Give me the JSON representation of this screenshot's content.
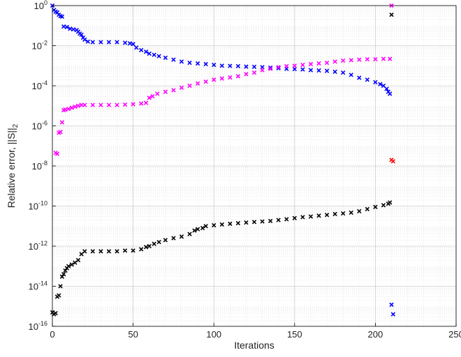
{
  "chart_data": {
    "type": "scatter",
    "title": "",
    "xlabel": "Iterations",
    "ylabel": "Relative error, ||S||",
    "ylabel_sub": "2",
    "xlim": [
      0,
      250
    ],
    "ylim": [
      1e-16,
      1
    ],
    "yscale": "log",
    "grid": true,
    "minor_grid": true,
    "legend": "none",
    "marker": "x",
    "x_ticks": [
      "0",
      "50",
      "100",
      "150",
      "200",
      "250"
    ],
    "y_ticks": [
      {
        "base": "10",
        "exp": "0"
      },
      {
        "base": "10",
        "exp": "-2"
      },
      {
        "base": "10",
        "exp": "-4"
      },
      {
        "base": "10",
        "exp": "-6"
      },
      {
        "base": "10",
        "exp": "-8"
      },
      {
        "base": "10",
        "exp": "-10"
      },
      {
        "base": "10",
        "exp": "-12"
      },
      {
        "base": "10",
        "exp": "-14"
      },
      {
        "base": "10",
        "exp": "-16"
      }
    ],
    "series": [
      {
        "color": "#0000ff",
        "points": [
          [
            0,
            1
          ],
          [
            1,
            0.6
          ],
          [
            2,
            0.5
          ],
          [
            3,
            0.45
          ],
          [
            4,
            0.35
          ],
          [
            5,
            0.3
          ],
          [
            6,
            0.28
          ],
          [
            7,
            0.09
          ],
          [
            9,
            0.085
          ],
          [
            11,
            0.07
          ],
          [
            13,
            0.065
          ],
          [
            15,
            0.06
          ],
          [
            16,
            0.05
          ],
          [
            17,
            0.04
          ],
          [
            18,
            0.035
          ],
          [
            19,
            0.025
          ],
          [
            20,
            0.02
          ],
          [
            22,
            0.016
          ],
          [
            25,
            0.015
          ],
          [
            30,
            0.015
          ],
          [
            35,
            0.015
          ],
          [
            40,
            0.015
          ],
          [
            45,
            0.014
          ],
          [
            48,
            0.013
          ],
          [
            50,
            0.012
          ],
          [
            52,
            0.008
          ],
          [
            55,
            0.006
          ],
          [
            58,
            0.005
          ],
          [
            60,
            0.004
          ],
          [
            63,
            0.0035
          ],
          [
            66,
            0.003
          ],
          [
            70,
            0.0025
          ],
          [
            75,
            0.002
          ],
          [
            80,
            0.0016
          ],
          [
            85,
            0.0014
          ],
          [
            90,
            0.0013
          ],
          [
            95,
            0.0012
          ],
          [
            100,
            0.0011
          ],
          [
            105,
            0.001
          ],
          [
            110,
            0.00098
          ],
          [
            115,
            0.00095
          ],
          [
            120,
            0.0009
          ],
          [
            125,
            0.00088
          ],
          [
            130,
            0.00085
          ],
          [
            135,
            0.0008
          ],
          [
            140,
            0.00075
          ],
          [
            145,
            0.0007
          ],
          [
            150,
            0.00068
          ],
          [
            155,
            0.00065
          ],
          [
            160,
            0.0006
          ],
          [
            165,
            0.00058
          ],
          [
            170,
            0.00055
          ],
          [
            175,
            0.0005
          ],
          [
            180,
            0.00045
          ],
          [
            185,
            0.00035
          ],
          [
            190,
            0.00025
          ],
          [
            195,
            0.0002
          ],
          [
            200,
            0.00015
          ],
          [
            203,
            0.00012
          ],
          [
            205,
            0.0001
          ],
          [
            207,
            7e-05
          ],
          [
            208,
            5e-05
          ],
          [
            209,
            4e-05
          ]
        ]
      },
      {
        "color": "#ff00ff",
        "points": [
          [
            2,
            4.5e-08
          ],
          [
            3,
            4e-08
          ],
          [
            4,
            4.5e-07
          ],
          [
            5,
            5e-07
          ],
          [
            6,
            1.5e-06
          ],
          [
            7,
            6e-06
          ],
          [
            8,
            6.5e-06
          ],
          [
            10,
            7e-06
          ],
          [
            12,
            8e-06
          ],
          [
            14,
            9e-06
          ],
          [
            16,
            1e-05
          ],
          [
            18,
            1.1e-05
          ],
          [
            20,
            1.1e-05
          ],
          [
            25,
            1.1e-05
          ],
          [
            30,
            1.1e-05
          ],
          [
            35,
            1.1e-05
          ],
          [
            40,
            1.1e-05
          ],
          [
            45,
            1.15e-05
          ],
          [
            50,
            1.2e-05
          ],
          [
            55,
            1.3e-05
          ],
          [
            58,
            1.4e-05
          ],
          [
            60,
            2.5e-05
          ],
          [
            62,
            3e-05
          ],
          [
            65,
            4e-05
          ],
          [
            70,
            5e-05
          ],
          [
            75,
            6e-05
          ],
          [
            80,
            8e-05
          ],
          [
            85,
            0.0001
          ],
          [
            90,
            0.00013
          ],
          [
            95,
            0.00016
          ],
          [
            100,
            0.0002
          ],
          [
            105,
            0.00023
          ],
          [
            110,
            0.00026
          ],
          [
            115,
            0.0003
          ],
          [
            120,
            0.00038
          ],
          [
            125,
            0.00045
          ],
          [
            130,
            0.0006
          ],
          [
            135,
            0.0007
          ],
          [
            140,
            0.00085
          ],
          [
            145,
            0.00095
          ],
          [
            150,
            0.001
          ],
          [
            155,
            0.0011
          ],
          [
            160,
            0.0012
          ],
          [
            165,
            0.0013
          ],
          [
            170,
            0.0014
          ],
          [
            175,
            0.0016
          ],
          [
            180,
            0.0018
          ],
          [
            185,
            0.0019
          ],
          [
            190,
            0.002
          ],
          [
            195,
            0.0021
          ],
          [
            200,
            0.0021
          ],
          [
            205,
            0.0022
          ],
          [
            209,
            0.0022
          ],
          [
            210,
            1
          ]
        ]
      },
      {
        "color": "#000000",
        "points": [
          [
            0,
            5e-16
          ],
          [
            1,
            4e-16
          ],
          [
            2,
            4.5e-16
          ],
          [
            3,
            3e-15
          ],
          [
            4,
            3.5e-15
          ],
          [
            5,
            1e-14
          ],
          [
            6,
            3e-14
          ],
          [
            7,
            4e-14
          ],
          [
            8,
            6e-14
          ],
          [
            9,
            8e-14
          ],
          [
            10,
            1e-13
          ],
          [
            12,
            1.2e-13
          ],
          [
            14,
            1.5e-13
          ],
          [
            16,
            2e-13
          ],
          [
            18,
            4e-13
          ],
          [
            20,
            5.5e-13
          ],
          [
            25,
            5.5e-13
          ],
          [
            30,
            5.5e-13
          ],
          [
            35,
            5.5e-13
          ],
          [
            40,
            5.5e-13
          ],
          [
            45,
            6e-13
          ],
          [
            50,
            6e-13
          ],
          [
            55,
            7e-13
          ],
          [
            58,
            9e-13
          ],
          [
            60,
            1e-12
          ],
          [
            63,
            1.3e-12
          ],
          [
            66,
            1.6e-12
          ],
          [
            70,
            2e-12
          ],
          [
            75,
            2.5e-12
          ],
          [
            80,
            3e-12
          ],
          [
            85,
            4e-12
          ],
          [
            88,
            6e-12
          ],
          [
            90,
            7e-12
          ],
          [
            93,
            8e-12
          ],
          [
            95,
            1e-11
          ],
          [
            100,
            1.1e-11
          ],
          [
            105,
            1.2e-11
          ],
          [
            110,
            1.3e-11
          ],
          [
            115,
            1.4e-11
          ],
          [
            120,
            1.5e-11
          ],
          [
            125,
            1.6e-11
          ],
          [
            130,
            1.7e-11
          ],
          [
            135,
            1.8e-11
          ],
          [
            140,
            2e-11
          ],
          [
            145,
            2.2e-11
          ],
          [
            150,
            2.5e-11
          ],
          [
            155,
            2.8e-11
          ],
          [
            160,
            3e-11
          ],
          [
            165,
            3.3e-11
          ],
          [
            170,
            3.6e-11
          ],
          [
            175,
            4e-11
          ],
          [
            180,
            4.3e-11
          ],
          [
            185,
            4.7e-11
          ],
          [
            190,
            5.5e-11
          ],
          [
            195,
            7e-11
          ],
          [
            200,
            9e-11
          ],
          [
            205,
            1.1e-10
          ],
          [
            208,
            1.3e-10
          ],
          [
            209,
            1.5e-10
          ],
          [
            210,
            0.35
          ]
        ]
      },
      {
        "color": "#ff0000",
        "points": [
          [
            210,
            2e-08
          ],
          [
            211,
            1.7e-08
          ]
        ]
      },
      {
        "color": "#0000ff",
        "points": [
          [
            210,
            1.2e-15
          ],
          [
            211,
            4e-16
          ]
        ]
      }
    ]
  }
}
